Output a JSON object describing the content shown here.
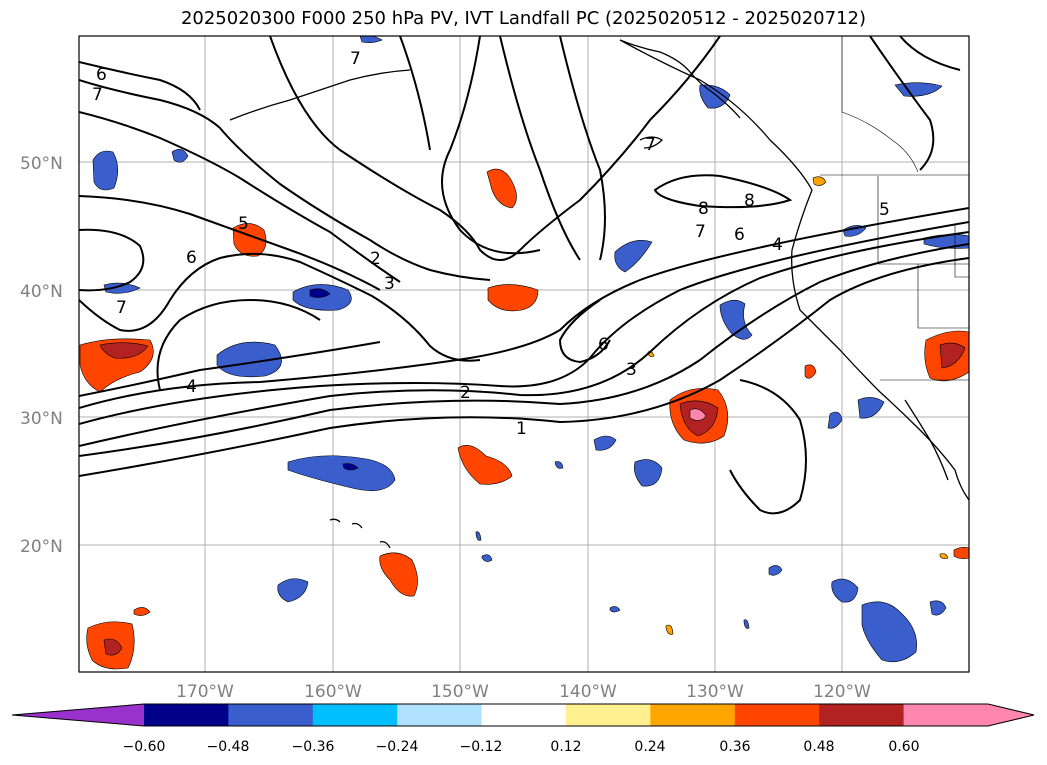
{
  "title": "2025020300 F000 250 hPa PV, IVT Landfall PC (2025020512 - 2025020712)",
  "map": {
    "lon_ticks": [
      "170°W",
      "160°W",
      "150°W",
      "140°W",
      "130°W",
      "120°W"
    ],
    "lat_ticks": [
      "50°N",
      "40°N",
      "30°N",
      "20°N"
    ],
    "extent": {
      "lon_min": -180,
      "lon_max": -110,
      "lat_min": 10,
      "lat_max": 60
    },
    "gridlines": true
  },
  "pv_contour_labels": [
    "6",
    "7",
    "7",
    "6",
    "5",
    "2",
    "3",
    "4",
    "7",
    "7",
    "8",
    "8",
    "7",
    "6",
    "4",
    "5",
    "6",
    "3",
    "2",
    "1"
  ],
  "colorbar": {
    "ticks": [
      "−0.60",
      "−0.48",
      "−0.36",
      "−0.24",
      "−0.12",
      "0.12",
      "0.24",
      "0.36",
      "0.48",
      "0.60"
    ],
    "colors": [
      "#9932cc",
      "#00008b",
      "#3a5fcd",
      "#00bfff",
      "#b0e2ff",
      "#ffffff",
      "#fff08f",
      "#ffa500",
      "#ff4500",
      "#b22222",
      "#ff86ae",
      "#ff86ae"
    ]
  }
}
